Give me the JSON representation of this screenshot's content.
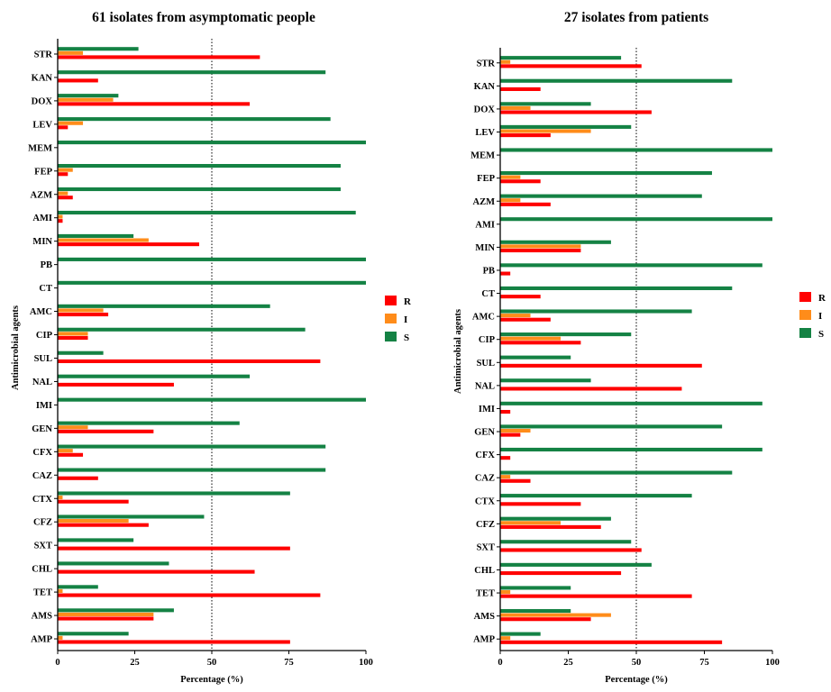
{
  "colors": {
    "R": "#ff0000",
    "I": "#ff8c1a",
    "S": "#148244"
  },
  "legend": [
    {
      "key": "R",
      "label": "R"
    },
    {
      "key": "I",
      "label": "I"
    },
    {
      "key": "S",
      "label": "S"
    }
  ],
  "chart_data": [
    {
      "type": "bar",
      "orientation": "horizontal",
      "title": "61 isolates from asymptomatic people",
      "xlabel": "Percentage (%)",
      "ylabel": "Antimicrobial agents",
      "xlim": [
        0,
        100
      ],
      "xticks": [
        "0",
        "25",
        "50",
        "75",
        "100"
      ],
      "reference_line": 50,
      "legend_position": "right",
      "categories": [
        "STR",
        "KAN",
        "DOX",
        "LEV",
        "MEM",
        "FEP",
        "AZM",
        "AMI",
        "MIN",
        "PB",
        "CT",
        "AMC",
        "CIP",
        "SUL",
        "NAL",
        "IMI",
        "GEN",
        "CFX",
        "CAZ",
        "CTX",
        "CFZ",
        "SXT",
        "CHL",
        "TET",
        "AMS",
        "AMP"
      ],
      "series": [
        {
          "name": "S",
          "values": [
            26.2,
            86.9,
            19.7,
            88.5,
            100,
            91.8,
            91.8,
            96.7,
            24.6,
            100,
            100,
            68.9,
            80.3,
            14.8,
            62.3,
            100,
            59.0,
            86.9,
            86.9,
            75.4,
            47.5,
            24.6,
            36.1,
            13.1,
            37.7,
            23.0
          ]
        },
        {
          "name": "I",
          "values": [
            8.2,
            0,
            18.0,
            8.2,
            0,
            4.9,
            3.3,
            1.6,
            29.5,
            0,
            0,
            14.8,
            9.8,
            0,
            0,
            0,
            9.8,
            4.9,
            0,
            1.6,
            23.0,
            0,
            0,
            1.6,
            31.1,
            1.6
          ]
        },
        {
          "name": "R",
          "values": [
            65.6,
            13.1,
            62.3,
            3.3,
            0,
            3.3,
            4.9,
            1.6,
            45.9,
            0,
            0,
            16.4,
            9.8,
            85.2,
            37.7,
            0,
            31.1,
            8.2,
            13.1,
            23.0,
            29.5,
            75.4,
            63.9,
            85.2,
            31.1,
            75.4
          ]
        }
      ]
    },
    {
      "type": "bar",
      "orientation": "horizontal",
      "title": "27 isolates from patients",
      "xlabel": "Percentage (%)",
      "ylabel": "Antimicrobial agents",
      "xlim": [
        0,
        100
      ],
      "xticks": [
        "0",
        "25",
        "50",
        "75",
        "100"
      ],
      "reference_line": 50,
      "legend_position": "right",
      "categories": [
        "STR",
        "KAN",
        "DOX",
        "LEV",
        "MEM",
        "FEP",
        "AZM",
        "AMI",
        "MIN",
        "PB",
        "CT",
        "AMC",
        "CIP",
        "SUL",
        "NAL",
        "IMI",
        "GEN",
        "CFX",
        "CAZ",
        "CTX",
        "CFZ",
        "SXT",
        "CHL",
        "TET",
        "AMS",
        "AMP"
      ],
      "series": [
        {
          "name": "S",
          "values": [
            44.4,
            85.2,
            33.3,
            48.1,
            100,
            77.8,
            74.1,
            100,
            40.7,
            96.3,
            85.2,
            70.4,
            48.1,
            25.9,
            33.3,
            96.3,
            81.5,
            96.3,
            85.2,
            70.4,
            40.7,
            48.1,
            55.6,
            25.9,
            25.9,
            14.8
          ]
        },
        {
          "name": "I",
          "values": [
            3.7,
            0,
            11.1,
            33.3,
            0,
            7.4,
            7.4,
            0,
            29.6,
            0,
            0,
            11.1,
            22.2,
            0,
            0,
            0,
            11.1,
            0,
            3.7,
            0,
            22.2,
            0,
            0,
            3.7,
            40.7,
            3.7
          ]
        },
        {
          "name": "R",
          "values": [
            51.9,
            14.8,
            55.6,
            18.5,
            0,
            14.8,
            18.5,
            0,
            29.6,
            3.7,
            14.8,
            18.5,
            29.6,
            74.1,
            66.7,
            3.7,
            7.4,
            3.7,
            11.1,
            29.6,
            37.0,
            51.9,
            44.4,
            70.4,
            33.3,
            81.5
          ]
        }
      ]
    }
  ]
}
